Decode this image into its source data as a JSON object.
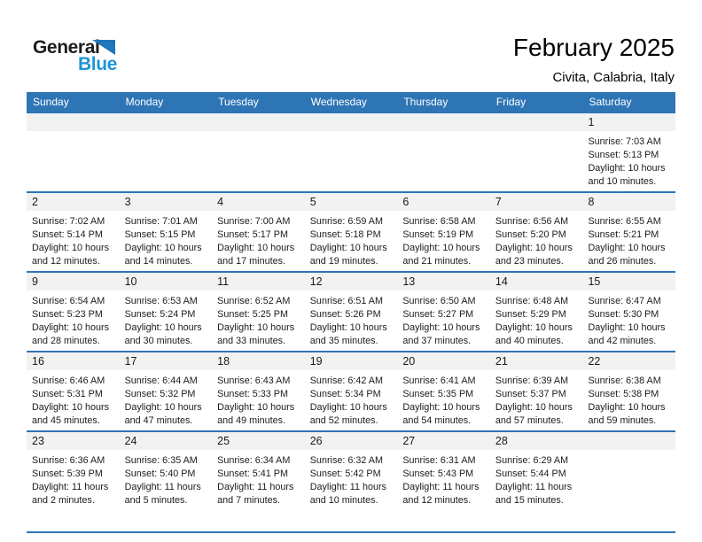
{
  "logo": {
    "general": "General",
    "blue": "Blue"
  },
  "header": {
    "title": "February 2025",
    "subtitle": "Civita, Calabria, Italy"
  },
  "weekdays": [
    "Sunday",
    "Monday",
    "Tuesday",
    "Wednesday",
    "Thursday",
    "Friday",
    "Saturday"
  ],
  "labels": {
    "sunrise": "Sunrise:",
    "sunset": "Sunset:",
    "daylight": "Daylight:"
  },
  "colors": {
    "header_blue": "#2E75B6",
    "line_blue": "#2E75B6",
    "band_gray": "#F2F2F2",
    "logo_blue": "#1E95D4",
    "triangle_blue": "#2076BC"
  },
  "weeks": [
    [
      null,
      null,
      null,
      null,
      null,
      null,
      {
        "day": "1",
        "sunrise": "7:03 AM",
        "sunset": "5:13 PM",
        "daylight_hours": "10 hours",
        "daylight_minutes": "and 10 minutes."
      }
    ],
    [
      {
        "day": "2",
        "sunrise": "7:02 AM",
        "sunset": "5:14 PM",
        "daylight_hours": "10 hours",
        "daylight_minutes": "and 12 minutes."
      },
      {
        "day": "3",
        "sunrise": "7:01 AM",
        "sunset": "5:15 PM",
        "daylight_hours": "10 hours",
        "daylight_minutes": "and 14 minutes."
      },
      {
        "day": "4",
        "sunrise": "7:00 AM",
        "sunset": "5:17 PM",
        "daylight_hours": "10 hours",
        "daylight_minutes": "and 17 minutes."
      },
      {
        "day": "5",
        "sunrise": "6:59 AM",
        "sunset": "5:18 PM",
        "daylight_hours": "10 hours",
        "daylight_minutes": "and 19 minutes."
      },
      {
        "day": "6",
        "sunrise": "6:58 AM",
        "sunset": "5:19 PM",
        "daylight_hours": "10 hours",
        "daylight_minutes": "and 21 minutes."
      },
      {
        "day": "7",
        "sunrise": "6:56 AM",
        "sunset": "5:20 PM",
        "daylight_hours": "10 hours",
        "daylight_minutes": "and 23 minutes."
      },
      {
        "day": "8",
        "sunrise": "6:55 AM",
        "sunset": "5:21 PM",
        "daylight_hours": "10 hours",
        "daylight_minutes": "and 26 minutes."
      }
    ],
    [
      {
        "day": "9",
        "sunrise": "6:54 AM",
        "sunset": "5:23 PM",
        "daylight_hours": "10 hours",
        "daylight_minutes": "and 28 minutes."
      },
      {
        "day": "10",
        "sunrise": "6:53 AM",
        "sunset": "5:24 PM",
        "daylight_hours": "10 hours",
        "daylight_minutes": "and 30 minutes."
      },
      {
        "day": "11",
        "sunrise": "6:52 AM",
        "sunset": "5:25 PM",
        "daylight_hours": "10 hours",
        "daylight_minutes": "and 33 minutes."
      },
      {
        "day": "12",
        "sunrise": "6:51 AM",
        "sunset": "5:26 PM",
        "daylight_hours": "10 hours",
        "daylight_minutes": "and 35 minutes."
      },
      {
        "day": "13",
        "sunrise": "6:50 AM",
        "sunset": "5:27 PM",
        "daylight_hours": "10 hours",
        "daylight_minutes": "and 37 minutes."
      },
      {
        "day": "14",
        "sunrise": "6:48 AM",
        "sunset": "5:29 PM",
        "daylight_hours": "10 hours",
        "daylight_minutes": "and 40 minutes."
      },
      {
        "day": "15",
        "sunrise": "6:47 AM",
        "sunset": "5:30 PM",
        "daylight_hours": "10 hours",
        "daylight_minutes": "and 42 minutes."
      }
    ],
    [
      {
        "day": "16",
        "sunrise": "6:46 AM",
        "sunset": "5:31 PM",
        "daylight_hours": "10 hours",
        "daylight_minutes": "and 45 minutes."
      },
      {
        "day": "17",
        "sunrise": "6:44 AM",
        "sunset": "5:32 PM",
        "daylight_hours": "10 hours",
        "daylight_minutes": "and 47 minutes."
      },
      {
        "day": "18",
        "sunrise": "6:43 AM",
        "sunset": "5:33 PM",
        "daylight_hours": "10 hours",
        "daylight_minutes": "and 49 minutes."
      },
      {
        "day": "19",
        "sunrise": "6:42 AM",
        "sunset": "5:34 PM",
        "daylight_hours": "10 hours",
        "daylight_minutes": "and 52 minutes."
      },
      {
        "day": "20",
        "sunrise": "6:41 AM",
        "sunset": "5:35 PM",
        "daylight_hours": "10 hours",
        "daylight_minutes": "and 54 minutes."
      },
      {
        "day": "21",
        "sunrise": "6:39 AM",
        "sunset": "5:37 PM",
        "daylight_hours": "10 hours",
        "daylight_minutes": "and 57 minutes."
      },
      {
        "day": "22",
        "sunrise": "6:38 AM",
        "sunset": "5:38 PM",
        "daylight_hours": "10 hours",
        "daylight_minutes": "and 59 minutes."
      }
    ],
    [
      {
        "day": "23",
        "sunrise": "6:36 AM",
        "sunset": "5:39 PM",
        "daylight_hours": "11 hours",
        "daylight_minutes": "and 2 minutes."
      },
      {
        "day": "24",
        "sunrise": "6:35 AM",
        "sunset": "5:40 PM",
        "daylight_hours": "11 hours",
        "daylight_minutes": "and 5 minutes."
      },
      {
        "day": "25",
        "sunrise": "6:34 AM",
        "sunset": "5:41 PM",
        "daylight_hours": "11 hours",
        "daylight_minutes": "and 7 minutes."
      },
      {
        "day": "26",
        "sunrise": "6:32 AM",
        "sunset": "5:42 PM",
        "daylight_hours": "11 hours",
        "daylight_minutes": "and 10 minutes."
      },
      {
        "day": "27",
        "sunrise": "6:31 AM",
        "sunset": "5:43 PM",
        "daylight_hours": "11 hours",
        "daylight_minutes": "and 12 minutes."
      },
      {
        "day": "28",
        "sunrise": "6:29 AM",
        "sunset": "5:44 PM",
        "daylight_hours": "11 hours",
        "daylight_minutes": "and 15 minutes."
      },
      null
    ]
  ]
}
